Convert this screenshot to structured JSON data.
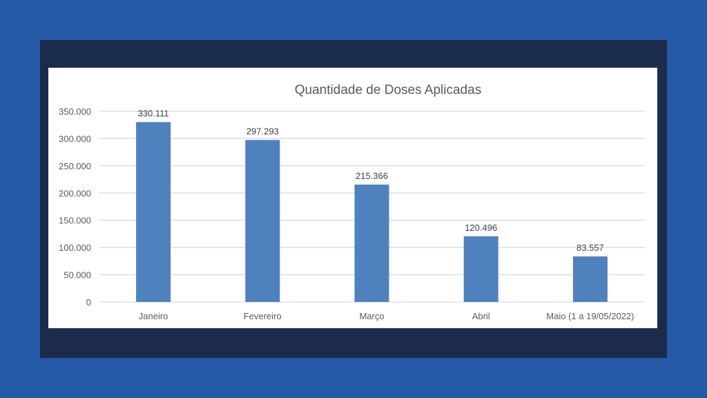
{
  "chart_data": {
    "type": "bar",
    "title": "Quantidade de Doses Aplicadas",
    "categories": [
      "Janeiro",
      "Fevereiro",
      "Março",
      "Abril",
      "Maio (1 a 19/05/2022)"
    ],
    "values": [
      330111,
      297293,
      215366,
      120496,
      83557
    ],
    "value_labels": [
      "330.111",
      "297.293",
      "215.366",
      "120.496",
      "83.557"
    ],
    "xlabel": "",
    "ylabel": "",
    "ylim": [
      0,
      350000
    ],
    "yticks": [
      0,
      50000,
      100000,
      150000,
      200000,
      250000,
      300000,
      350000
    ],
    "ytick_labels": [
      "0",
      "50.000",
      "100.000",
      "150.000",
      "200.000",
      "250.000",
      "300.000",
      "350.000"
    ],
    "grid": true,
    "legend": "none",
    "bar_color": "#4f81bd"
  }
}
